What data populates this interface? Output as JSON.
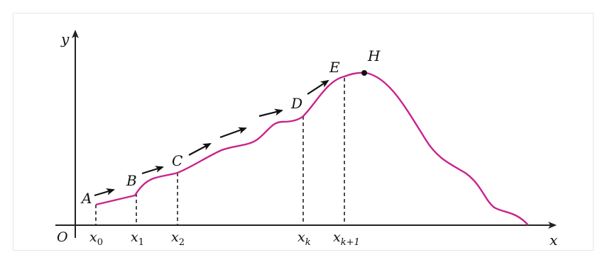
{
  "diagram": {
    "axis_labels": {
      "x": "x",
      "y": "y",
      "origin": "O"
    },
    "curve_points": [
      "A",
      "B",
      "C",
      "D",
      "E",
      "H"
    ],
    "x_ticks": [
      {
        "base": "x",
        "sub": "0"
      },
      {
        "base": "x",
        "sub": "1"
      },
      {
        "base": "x",
        "sub": "2"
      },
      {
        "base": "x",
        "sub": "k"
      },
      {
        "base": "x",
        "sub": "k+1"
      }
    ],
    "colors": {
      "curve": "#c8238c",
      "axes": "#222222",
      "arrows": "#111111",
      "dashes": "#222222"
    }
  }
}
